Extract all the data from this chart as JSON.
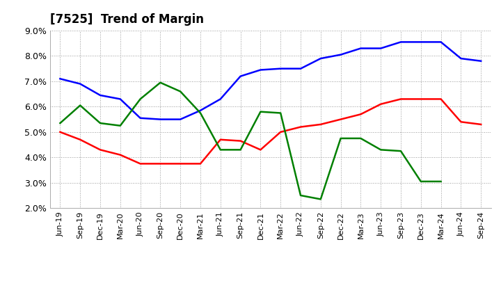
{
  "title": "[7525]  Trend of Margin",
  "x_labels": [
    "Jun-19",
    "Sep-19",
    "Dec-19",
    "Mar-20",
    "Jun-20",
    "Sep-20",
    "Dec-20",
    "Mar-21",
    "Jun-21",
    "Sep-21",
    "Dec-21",
    "Mar-22",
    "Jun-22",
    "Sep-22",
    "Dec-22",
    "Mar-23",
    "Jun-23",
    "Sep-23",
    "Dec-23",
    "Mar-24",
    "Jun-24",
    "Sep-24"
  ],
  "ordinary_income": [
    7.1,
    6.9,
    6.45,
    6.3,
    5.55,
    5.5,
    5.5,
    5.85,
    6.3,
    7.2,
    7.45,
    7.5,
    7.5,
    7.9,
    8.05,
    8.3,
    8.3,
    8.55,
    8.55,
    8.55,
    7.9,
    7.8
  ],
  "net_income": [
    5.0,
    4.7,
    4.3,
    4.1,
    3.75,
    3.75,
    3.75,
    3.75,
    4.7,
    4.65,
    4.3,
    5.0,
    5.2,
    5.3,
    5.5,
    5.7,
    6.1,
    6.3,
    6.3,
    6.3,
    5.4,
    5.3
  ],
  "operating_cashflow": [
    5.35,
    6.05,
    5.35,
    5.25,
    6.3,
    6.95,
    6.6,
    5.75,
    4.3,
    4.3,
    5.8,
    5.75,
    2.5,
    2.35,
    4.75,
    4.75,
    4.3,
    4.25,
    3.05,
    3.05,
    null,
    null
  ],
  "ylim": [
    2.0,
    9.0
  ],
  "yticks": [
    2.0,
    3.0,
    4.0,
    5.0,
    6.0,
    7.0,
    8.0,
    9.0
  ],
  "line_colors": {
    "ordinary_income": "#0000FF",
    "net_income": "#FF0000",
    "operating_cashflow": "#008000"
  },
  "line_width": 1.8,
  "background_color": "#FFFFFF",
  "grid_color": "#999999",
  "title_fontsize": 12,
  "tick_fontsize": 8,
  "legend_fontsize": 9
}
